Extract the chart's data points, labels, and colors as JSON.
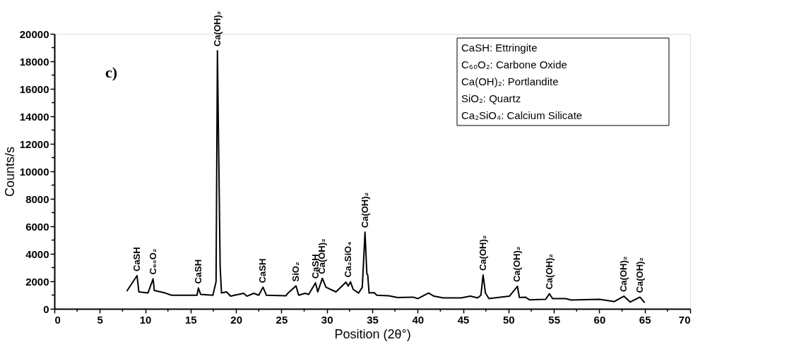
{
  "chart_data": {
    "type": "line",
    "title": "c)",
    "xlabel": "Position (2θ°)",
    "ylabel": "Counts/s",
    "xlim": [
      0,
      70
    ],
    "ylim": [
      0,
      20000
    ],
    "xticks": [
      0,
      {
        "value": 2.5,
        "label": null
      },
      5,
      {
        "value": 7.5,
        "label": null
      },
      10,
      {
        "value": 12.5,
        "label": null
      },
      15,
      {
        "value": 17.5,
        "label": null
      },
      20,
      {
        "value": 22.5,
        "label": null
      },
      25,
      {
        "value": 27.5,
        "label": null
      },
      30,
      {
        "value": 32.5,
        "label": null
      },
      35,
      {
        "value": 37.5,
        "label": null
      },
      40,
      {
        "value": 42.5,
        "label": null
      },
      45,
      {
        "value": 47.5,
        "label": null
      },
      50,
      {
        "value": 52.5,
        "label": null
      },
      55,
      {
        "value": 57.5,
        "label": null
      },
      60,
      {
        "value": 62.5,
        "label": null
      },
      65,
      {
        "value": 67.5,
        "label": null
      },
      70
    ],
    "yticks": [
      0,
      {
        "value": 1000,
        "label": null
      },
      2000,
      {
        "value": 3000,
        "label": null
      },
      4000,
      {
        "value": 5000,
        "label": null
      },
      6000,
      {
        "value": 7000,
        "label": null
      },
      8000,
      {
        "value": 9000,
        "label": null
      },
      10000,
      {
        "value": 11000,
        "label": null
      },
      12000,
      {
        "value": 13000,
        "label": null
      },
      14000,
      {
        "value": 15000,
        "label": null
      },
      16000,
      {
        "value": 17000,
        "label": null
      },
      18000,
      {
        "value": 19000,
        "label": null
      },
      20000
    ],
    "grid": false,
    "legend": false,
    "marker": "none",
    "line_style": "solid",
    "series": [
      {
        "color": "#000000",
        "x": [
          7.97,
          9.1,
          9.3,
          10.3,
          10.87,
          11.0,
          12.2,
          12.9,
          15.7,
          15.86,
          16.1,
          17.45,
          17.8,
          17.95,
          18.25,
          18.4,
          18.95,
          19.4,
          20.83,
          21.2,
          21.96,
          22.5,
          22.97,
          23.35,
          25.5,
          25.7,
          26.6,
          26.9,
          27.6,
          28.0,
          28.75,
          29.0,
          29.5,
          29.9,
          31.0,
          32.1,
          32.35,
          32.6,
          32.9,
          33.5,
          33.9,
          34.2,
          34.4,
          34.5,
          34.65,
          35.2,
          35.5,
          36.8,
          37.8,
          39.5,
          40.0,
          41.2,
          41.8,
          42.8,
          44.8,
          45.8,
          46.6,
          46.96,
          47.2,
          47.46,
          47.84,
          50.1,
          50.98,
          51.2,
          51.86,
          52.3,
          54.1,
          54.5,
          54.85,
          56.25,
          56.9,
          60.0,
          61.66,
          62.7,
          63.4,
          64.47,
          65.0
        ],
        "values": [
          1280,
          2410,
          1230,
          1150,
          2180,
          1330,
          1150,
          985,
          985,
          1510,
          1050,
          985,
          1970,
          18770,
          3050,
          1150,
          1230,
          920,
          1130,
          920,
          1130,
          985,
          1570,
          985,
          955,
          1130,
          1670,
          985,
          1130,
          1050,
          1890,
          1230,
          2220,
          1570,
          1230,
          1940,
          1650,
          1970,
          1410,
          1150,
          1570,
          5580,
          2560,
          2460,
          1150,
          1180,
          985,
          950,
          820,
          850,
          740,
          1150,
          920,
          790,
          790,
          920,
          790,
          985,
          2460,
          1150,
          740,
          920,
          1640,
          820,
          850,
          660,
          690,
          1100,
          740,
          740,
          640,
          690,
          530,
          920,
          490,
          850,
          440
        ]
      }
    ],
    "annotations": [
      "CaSH: Ettringite",
      "C₆₀O₂: Carbone Oxide",
      "Ca(OH)₂: Portlandite",
      "SiO₂: Quartz",
      "Ca₂SiO₄: Calcium Silicate",
      {
        "text": "CaSH",
        "x": 9.1,
        "y": 2410
      },
      {
        "text": "C₆₀O₂",
        "x": 10.87,
        "y": 2180
      },
      {
        "text": "CaSH",
        "x": 15.86,
        "y": 1510
      },
      {
        "text": "Ca(OH)₂",
        "x": 17.95,
        "y": 18770
      },
      {
        "text": "CaSH",
        "x": 22.97,
        "y": 1570
      },
      {
        "text": "SiO₂",
        "x": 26.6,
        "y": 1670
      },
      {
        "text": "CaSH",
        "x": 28.75,
        "y": 1890
      },
      {
        "text": "Ca(OH)₂",
        "x": 29.5,
        "y": 2220
      },
      {
        "text": "Ca₂SiO₄",
        "x": 32.35,
        "y": 1970
      },
      {
        "text": "Ca(OH)₂",
        "x": 34.2,
        "y": 5580
      },
      {
        "text": "Ca(OH)₂",
        "x": 47.2,
        "y": 2460
      },
      {
        "text": "Ca(OH)₂",
        "x": 50.98,
        "y": 1640
      },
      {
        "text": "Ca(OH)₂",
        "x": 54.5,
        "y": 1100
      },
      {
        "text": "Ca(OH)₂",
        "x": 62.7,
        "y": 920
      },
      {
        "text": "Ca(OH)₂",
        "x": 64.47,
        "y": 850
      }
    ]
  }
}
